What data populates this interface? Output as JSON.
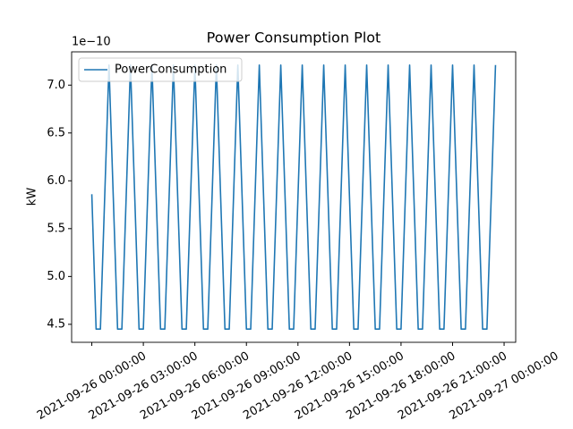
{
  "chart_data": {
    "type": "line",
    "title": "Power Consumption Plot",
    "ylabel": "kW",
    "y_offset_text": "1e−10",
    "x": [
      "2021-09-26 00:00:00",
      "2021-09-26 00:15:00",
      "2021-09-26 00:30:00",
      "2021-09-26 00:45:00",
      "2021-09-26 01:00:00",
      "2021-09-26 01:15:00",
      "2021-09-26 01:30:00",
      "2021-09-26 01:45:00",
      "2021-09-26 02:00:00",
      "2021-09-26 02:15:00",
      "2021-09-26 02:30:00",
      "2021-09-26 02:45:00",
      "2021-09-26 03:00:00",
      "2021-09-26 03:15:00",
      "2021-09-26 03:30:00",
      "2021-09-26 03:45:00",
      "2021-09-26 04:00:00",
      "2021-09-26 04:15:00",
      "2021-09-26 04:30:00",
      "2021-09-26 04:45:00",
      "2021-09-26 05:00:00",
      "2021-09-26 05:15:00",
      "2021-09-26 05:30:00",
      "2021-09-26 05:45:00",
      "2021-09-26 06:00:00",
      "2021-09-26 06:15:00",
      "2021-09-26 06:30:00",
      "2021-09-26 06:45:00",
      "2021-09-26 07:00:00",
      "2021-09-26 07:15:00",
      "2021-09-26 07:30:00",
      "2021-09-26 07:45:00",
      "2021-09-26 08:00:00",
      "2021-09-26 08:15:00",
      "2021-09-26 08:30:00",
      "2021-09-26 08:45:00",
      "2021-09-26 09:00:00",
      "2021-09-26 09:15:00",
      "2021-09-26 09:30:00",
      "2021-09-26 09:45:00",
      "2021-09-26 10:00:00",
      "2021-09-26 10:15:00",
      "2021-09-26 10:30:00",
      "2021-09-26 10:45:00",
      "2021-09-26 11:00:00",
      "2021-09-26 11:15:00",
      "2021-09-26 11:30:00",
      "2021-09-26 11:45:00",
      "2021-09-26 12:00:00",
      "2021-09-26 12:15:00",
      "2021-09-26 12:30:00",
      "2021-09-26 12:45:00",
      "2021-09-26 13:00:00",
      "2021-09-26 13:15:00",
      "2021-09-26 13:30:00",
      "2021-09-26 13:45:00",
      "2021-09-26 14:00:00",
      "2021-09-26 14:15:00",
      "2021-09-26 14:30:00",
      "2021-09-26 14:45:00",
      "2021-09-26 15:00:00",
      "2021-09-26 15:15:00",
      "2021-09-26 15:30:00",
      "2021-09-26 15:45:00",
      "2021-09-26 16:00:00",
      "2021-09-26 16:15:00",
      "2021-09-26 16:30:00",
      "2021-09-26 16:45:00",
      "2021-09-26 17:00:00",
      "2021-09-26 17:15:00",
      "2021-09-26 17:30:00",
      "2021-09-26 17:45:00",
      "2021-09-26 18:00:00",
      "2021-09-26 18:15:00",
      "2021-09-26 18:30:00",
      "2021-09-26 18:45:00",
      "2021-09-26 19:00:00",
      "2021-09-26 19:15:00",
      "2021-09-26 19:30:00",
      "2021-09-26 19:45:00",
      "2021-09-26 20:00:00",
      "2021-09-26 20:15:00",
      "2021-09-26 20:30:00",
      "2021-09-26 20:45:00",
      "2021-09-26 21:00:00",
      "2021-09-26 21:15:00",
      "2021-09-26 21:30:00",
      "2021-09-26 21:45:00",
      "2021-09-26 22:00:00",
      "2021-09-26 22:15:00",
      "2021-09-26 22:30:00",
      "2021-09-26 22:45:00",
      "2021-09-26 23:00:00",
      "2021-09-26 23:15:00",
      "2021-09-26 23:30:00"
    ],
    "series": [
      {
        "name": "PowerConsumption",
        "color": "#1f77b4",
        "values": [
          5.86,
          4.45,
          4.45,
          5.83,
          7.21,
          5.83,
          4.45,
          4.45,
          5.83,
          7.21,
          5.83,
          4.45,
          4.45,
          5.83,
          7.21,
          5.83,
          4.45,
          4.45,
          5.83,
          7.21,
          5.83,
          4.45,
          4.45,
          5.83,
          7.21,
          5.83,
          4.45,
          4.45,
          5.83,
          7.21,
          5.83,
          4.45,
          4.45,
          5.83,
          7.21,
          5.83,
          4.45,
          4.45,
          5.83,
          7.21,
          5.83,
          4.45,
          4.45,
          5.83,
          7.21,
          5.83,
          4.45,
          4.45,
          5.83,
          7.21,
          5.83,
          4.45,
          4.45,
          5.83,
          7.21,
          5.83,
          4.45,
          4.45,
          5.83,
          7.21,
          5.83,
          4.45,
          4.45,
          5.83,
          7.21,
          5.83,
          4.45,
          4.45,
          5.83,
          7.21,
          5.83,
          4.45,
          4.45,
          5.83,
          7.21,
          5.83,
          4.45,
          4.45,
          5.83,
          7.21,
          5.83,
          4.45,
          4.45,
          5.83,
          7.21,
          5.83,
          4.45,
          4.45,
          5.83,
          7.21,
          5.83,
          4.45,
          4.45,
          5.83,
          7.21
        ]
      }
    ],
    "xlim": [
      "2021-09-25 22:49:30",
      "2021-09-27 00:40:30"
    ],
    "xticks": [
      "2021-09-26 00:00:00",
      "2021-09-26 03:00:00",
      "2021-09-26 06:00:00",
      "2021-09-26 09:00:00",
      "2021-09-26 12:00:00",
      "2021-09-26 15:00:00",
      "2021-09-26 18:00:00",
      "2021-09-26 21:00:00",
      "2021-09-27 00:00:00"
    ],
    "ylim": [
      4.312,
      7.348
    ],
    "yticks": [
      {
        "value": 4.5,
        "label": "4.5"
      },
      {
        "value": 5,
        "label": "5.0"
      },
      {
        "value": 5.5,
        "label": "5.5"
      },
      {
        "value": 6,
        "label": "6.0"
      },
      {
        "value": 6.5,
        "label": "6.5"
      },
      {
        "value": 7,
        "label": "7.0"
      }
    ],
    "legend": "upper left",
    "grid": false
  }
}
